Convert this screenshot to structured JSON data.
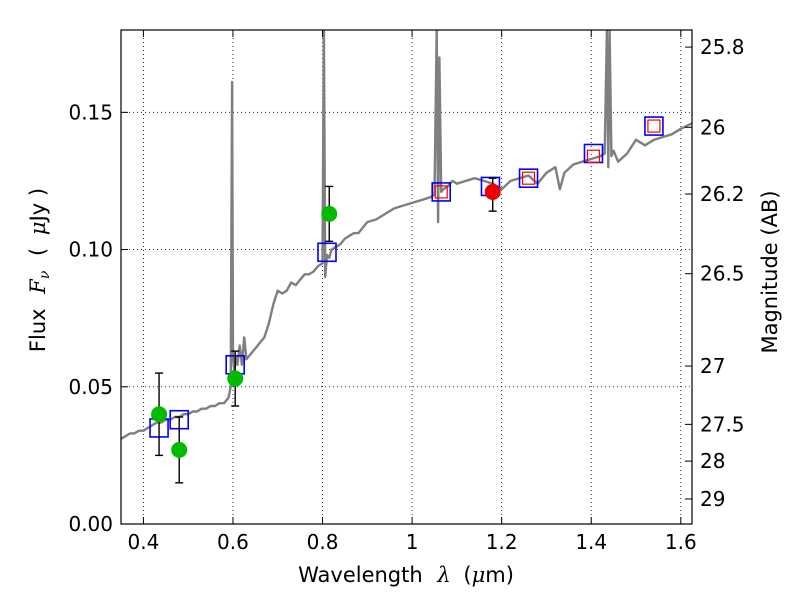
{
  "chart_data": {
    "type": "scatter",
    "xlabel_text": "Wavelength",
    "xlabel_symbol": "λ",
    "xlabel_unit_open": "(",
    "xlabel_unit_mu": "μ",
    "xlabel_unit_rest": "m)",
    "ylabel_text": "Flux",
    "ylabel_symbol": "F",
    "ylabel_sub": "ν",
    "ylabel_unit_open": "(",
    "ylabel_unit_mu": "μ",
    "ylabel_unit_rest": "Jy )",
    "y2label": "Magnitude (AB)",
    "xlim": [
      0.35,
      1.625
    ],
    "ylim": [
      0.0,
      0.18
    ],
    "xticks": [
      0.4,
      0.6,
      0.8,
      1.0,
      1.2,
      1.4,
      1.6
    ],
    "xtick_labels": [
      "0.4",
      "0.6",
      "0.8",
      "1",
      "1.2",
      "1.4",
      "1.6"
    ],
    "yticks": [
      0.0,
      0.05,
      0.1,
      0.15
    ],
    "ytick_labels": [
      "0.00",
      "0.05",
      "0.10",
      "0.15"
    ],
    "y2ticks": [
      25.8,
      26,
      26.2,
      26.5,
      27,
      27.5,
      28,
      29
    ],
    "y2tick_labels": [
      "25.8",
      "26",
      "26.2",
      "26.5",
      "27",
      "27.5",
      "28",
      "29"
    ],
    "grid": true,
    "colors": {
      "model": "#7f7f7f",
      "model_box": "#0000ff",
      "red_box": "#ff0000",
      "green": "#00bb00",
      "red": "#ee0000",
      "errorbar": "#000000"
    },
    "series": [
      {
        "name": "model spectrum",
        "style": "line",
        "x": [
          0.35,
          0.36,
          0.37,
          0.38,
          0.39,
          0.4,
          0.41,
          0.42,
          0.43,
          0.44,
          0.45,
          0.46,
          0.47,
          0.48,
          0.49,
          0.5,
          0.51,
          0.52,
          0.53,
          0.54,
          0.55,
          0.56,
          0.57,
          0.58,
          0.59,
          0.595,
          0.598,
          0.6,
          0.603,
          0.606,
          0.61,
          0.615,
          0.62,
          0.625,
          0.63,
          0.64,
          0.65,
          0.66,
          0.67,
          0.68,
          0.69,
          0.7,
          0.71,
          0.72,
          0.73,
          0.74,
          0.75,
          0.76,
          0.77,
          0.78,
          0.79,
          0.8,
          0.803,
          0.806,
          0.81,
          0.815,
          0.82,
          0.83,
          0.84,
          0.85,
          0.86,
          0.87,
          0.88,
          0.89,
          0.9,
          0.92,
          0.94,
          0.96,
          0.98,
          1.0,
          1.02,
          1.04,
          1.05,
          1.055,
          1.058,
          1.061,
          1.065,
          1.07,
          1.08,
          1.09,
          1.1,
          1.12,
          1.14,
          1.16,
          1.18,
          1.2,
          1.22,
          1.24,
          1.26,
          1.28,
          1.3,
          1.32,
          1.33,
          1.34,
          1.36,
          1.38,
          1.4,
          1.42,
          1.43,
          1.435,
          1.438,
          1.441,
          1.445,
          1.45,
          1.46,
          1.48,
          1.5,
          1.52,
          1.54,
          1.56,
          1.58,
          1.6,
          1.625
        ],
        "y": [
          0.031,
          0.032,
          0.033,
          0.033,
          0.034,
          0.034,
          0.035,
          0.036,
          0.037,
          0.037,
          0.038,
          0.038,
          0.039,
          0.039,
          0.04,
          0.04,
          0.041,
          0.041,
          0.042,
          0.042,
          0.043,
          0.043,
          0.044,
          0.044,
          0.046,
          0.05,
          0.161,
          0.06,
          0.056,
          0.061,
          0.058,
          0.065,
          0.058,
          0.068,
          0.06,
          0.062,
          0.064,
          0.066,
          0.068,
          0.073,
          0.08,
          0.085,
          0.084,
          0.085,
          0.088,
          0.087,
          0.089,
          0.091,
          0.091,
          0.092,
          0.094,
          0.095,
          0.18,
          0.09,
          0.098,
          0.097,
          0.1,
          0.101,
          0.102,
          0.104,
          0.105,
          0.106,
          0.106,
          0.108,
          0.11,
          0.111,
          0.113,
          0.115,
          0.116,
          0.117,
          0.118,
          0.119,
          0.12,
          0.18,
          0.11,
          0.17,
          0.121,
          0.122,
          0.123,
          0.125,
          0.124,
          0.125,
          0.126,
          0.125,
          0.124,
          0.122,
          0.125,
          0.126,
          0.127,
          0.124,
          0.128,
          0.13,
          0.122,
          0.128,
          0.131,
          0.132,
          0.133,
          0.134,
          0.135,
          0.18,
          0.13,
          0.18,
          0.134,
          0.136,
          0.132,
          0.135,
          0.14,
          0.138,
          0.14,
          0.141,
          0.142,
          0.144,
          0.146
        ]
      },
      {
        "name": "model photometry (blue boxes)",
        "style": "open-square",
        "x": [
          0.435,
          0.48,
          0.605,
          0.81,
          1.065,
          1.175,
          1.26,
          1.405,
          1.54
        ],
        "y": [
          0.035,
          0.038,
          0.058,
          0.099,
          0.121,
          0.123,
          0.126,
          0.135,
          0.145
        ]
      },
      {
        "name": "observed photometry (red boxes)",
        "style": "open-square",
        "x": [
          1.065,
          1.26,
          1.405,
          1.54
        ],
        "y": [
          0.121,
          0.126,
          0.134,
          0.145
        ]
      },
      {
        "name": "detections (green)",
        "style": "filled-circle",
        "x": [
          0.435,
          0.48,
          0.605,
          0.815
        ],
        "y": [
          0.04,
          0.027,
          0.053,
          0.113
        ],
        "yerr_low": [
          0.015,
          0.012,
          0.01,
          0.01
        ],
        "yerr_high": [
          0.015,
          0.012,
          0.01,
          0.01
        ]
      },
      {
        "name": "detection (red)",
        "style": "filled-circle",
        "x": [
          1.18
        ],
        "y": [
          0.121
        ],
        "yerr_low": [
          0.007
        ],
        "yerr_high": [
          0.005
        ]
      }
    ]
  }
}
